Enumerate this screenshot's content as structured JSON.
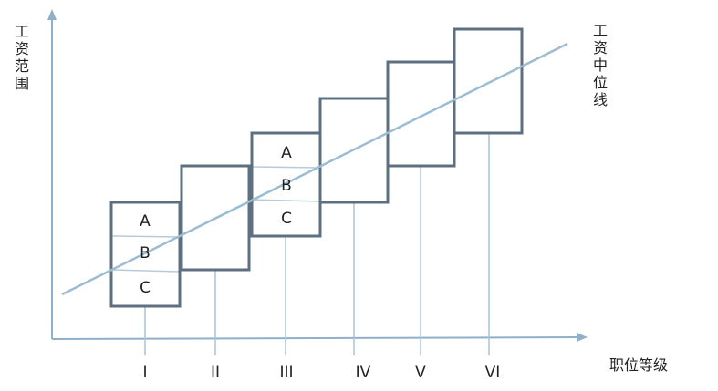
{
  "labels": {
    "y_axis": "工资范围",
    "midline": "工资中位线",
    "x_axis": "职位等级"
  },
  "grades": [
    "I",
    "II",
    "III",
    "IV",
    "V",
    "VI"
  ],
  "tiers": [
    "A",
    "B",
    "C"
  ],
  "colors": {
    "box": "#5e7080",
    "midline": "#9bbcd3",
    "axis": "#8fb0c8",
    "tick": "#a9c3d6",
    "inner": "#b9cbd8",
    "text": "#222222"
  }
}
